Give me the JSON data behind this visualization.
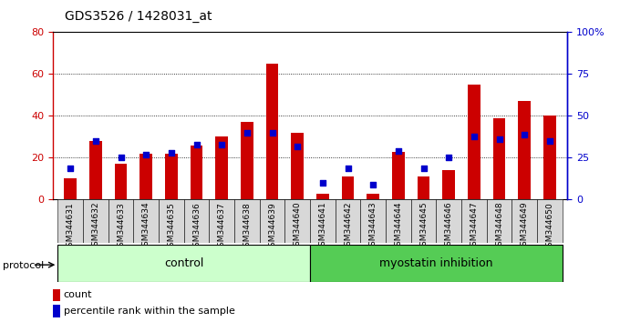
{
  "title": "GDS3526 / 1428031_at",
  "samples": [
    "GSM344631",
    "GSM344632",
    "GSM344633",
    "GSM344634",
    "GSM344635",
    "GSM344636",
    "GSM344637",
    "GSM344638",
    "GSM344639",
    "GSM344640",
    "GSM344641",
    "GSM344642",
    "GSM344643",
    "GSM344644",
    "GSM344645",
    "GSM344646",
    "GSM344647",
    "GSM344648",
    "GSM344649",
    "GSM344650"
  ],
  "counts": [
    10,
    28,
    17,
    22,
    22,
    26,
    30,
    37,
    65,
    32,
    3,
    11,
    3,
    23,
    11,
    14,
    55,
    39,
    47,
    40
  ],
  "percentile_ranks": [
    19,
    35,
    25,
    27,
    28,
    33,
    33,
    40,
    40,
    32,
    10,
    19,
    9,
    29,
    19,
    25,
    38,
    36,
    39,
    35
  ],
  "n_control": 10,
  "n_myostatin": 10,
  "bar_color": "#cc0000",
  "dot_color": "#0000cc",
  "control_bg": "#ccffcc",
  "myostatin_bg": "#55cc55",
  "xticklabel_bg": "#d8d8d8",
  "left_axis_color": "#cc0000",
  "right_axis_color": "#0000cc",
  "left_ylim": [
    0,
    80
  ],
  "right_ylim": [
    0,
    100
  ],
  "left_yticks": [
    0,
    20,
    40,
    60,
    80
  ],
  "right_yticks": [
    0,
    25,
    50,
    75,
    100
  ],
  "right_yticklabels": [
    "0",
    "25",
    "50",
    "75",
    "100%"
  ],
  "bar_width": 0.5,
  "protocol_label": "protocol",
  "control_label": "control",
  "myostatin_label": "myostatin inhibition",
  "legend_count_label": "count",
  "legend_percentile_label": "percentile rank within the sample"
}
